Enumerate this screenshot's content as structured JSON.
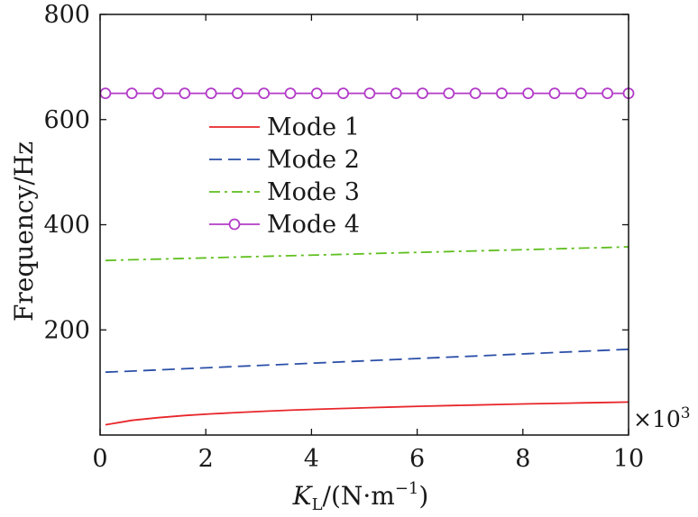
{
  "chart_data": {
    "type": "line",
    "title": "",
    "xlabel": {
      "main": "K",
      "sub": "L",
      "rest": "/(N·m",
      "sup": "−1",
      "close": ")"
    },
    "ylabel": "Frequency/Hz",
    "x_multiplier": {
      "prefix": "×10",
      "exp": "3"
    },
    "xlim": [
      0,
      10
    ],
    "ylim": [
      0,
      800
    ],
    "x_ticks": [
      0,
      2,
      4,
      6,
      8,
      10
    ],
    "y_ticks": [
      200,
      400,
      600,
      800
    ],
    "x_tick_labels": [
      "0",
      "2",
      "4",
      "6",
      "8",
      "10"
    ],
    "y_tick_labels": [
      "200",
      "400",
      "600",
      "800"
    ],
    "grid": false,
    "legend_position": "upper-middle",
    "x": [
      0.1,
      0.6,
      1.1,
      1.6,
      2.1,
      2.6,
      3.1,
      3.6,
      4.1,
      4.6,
      5.1,
      5.6,
      6.1,
      6.6,
      7.1,
      7.6,
      8.1,
      8.6,
      9.1,
      9.6,
      10.0
    ],
    "series": [
      {
        "name": "Mode 1",
        "color": "#e8262a",
        "style": "solid",
        "marker": "none",
        "values": [
          19.5,
          27.9,
          33.1,
          37.1,
          40.3,
          42.9,
          45.2,
          47.2,
          49.0,
          50.6,
          52.1,
          53.5,
          54.8,
          56.0,
          57.1,
          58.2,
          59.2,
          60.2,
          61.1,
          62.0,
          62.7
        ]
      },
      {
        "name": "Mode 2",
        "color": "#2b4fa8",
        "style": "dashed",
        "marker": "none",
        "values": [
          119.5,
          121.7,
          123.9,
          126.1,
          128.3,
          130.5,
          132.7,
          134.9,
          137.1,
          139.3,
          141.5,
          143.7,
          145.9,
          148.1,
          150.3,
          152.5,
          154.7,
          156.9,
          159.1,
          161.3,
          163.0
        ]
      },
      {
        "name": "Mode 3",
        "color": "#5fbf1e",
        "style": "dashdot",
        "marker": "none",
        "values": [
          332.0,
          333.3,
          334.6,
          335.9,
          337.2,
          338.5,
          339.8,
          341.1,
          342.4,
          343.7,
          345.0,
          346.3,
          347.6,
          348.9,
          350.2,
          351.5,
          352.8,
          354.1,
          355.4,
          356.7,
          358.0
        ]
      },
      {
        "name": "Mode 4",
        "color": "#b23bc7",
        "style": "solid",
        "marker": "circle",
        "values": [
          650.0,
          650.0,
          650.0,
          650.0,
          650.0,
          650.0,
          650.0,
          650.0,
          650.0,
          650.0,
          650.0,
          650.0,
          650.0,
          650.0,
          650.0,
          650.0,
          650.0,
          650.0,
          650.0,
          650.0,
          650.0
        ]
      }
    ]
  }
}
